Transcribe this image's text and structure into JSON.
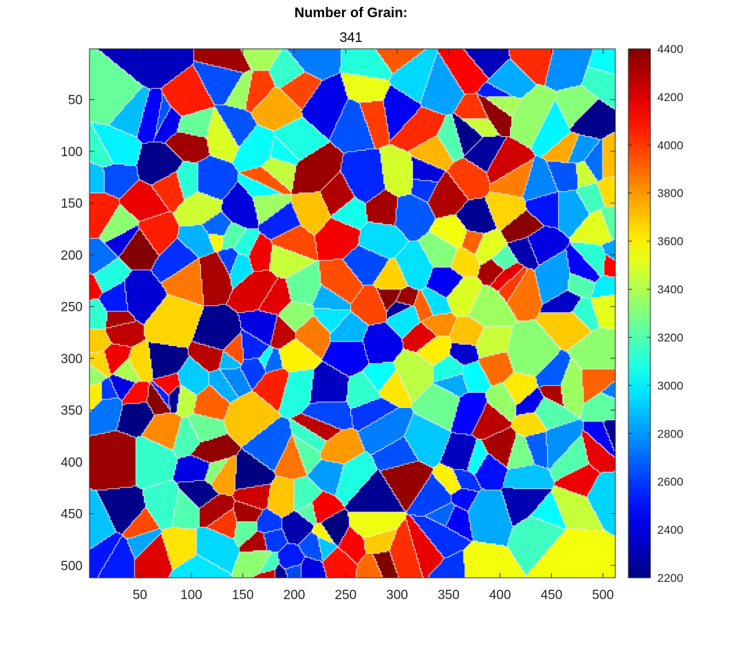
{
  "chart_data": {
    "type": "heatmap",
    "title": "Number of Grain:",
    "subtitle": "341",
    "xlim": [
      1,
      512
    ],
    "ylim": [
      1,
      512
    ],
    "y_direction": "reversed",
    "x_ticks": [
      50,
      100,
      150,
      200,
      250,
      300,
      350,
      400,
      450,
      500
    ],
    "y_ticks": [
      50,
      100,
      150,
      200,
      250,
      300,
      350,
      400,
      450,
      500
    ],
    "x_tick_labels": [
      "50",
      "100",
      "150",
      "200",
      "250",
      "300",
      "350",
      "400",
      "450",
      "500"
    ],
    "y_tick_labels": [
      "50",
      "100",
      "150",
      "200",
      "250",
      "300",
      "350",
      "400",
      "450",
      "500"
    ],
    "colormap": "jet",
    "colorbar": {
      "limits": [
        2200,
        4400
      ],
      "ticks": [
        2200,
        2400,
        2600,
        2800,
        3000,
        3200,
        3400,
        3600,
        3800,
        4000,
        4200,
        4400
      ],
      "tick_labels": [
        "2200",
        "2400",
        "2600",
        "2800",
        "3000",
        "3200",
        "3400",
        "3600",
        "3800",
        "4000",
        "4200",
        "4400"
      ],
      "location": "right"
    },
    "grain_count": 341,
    "value_range": [
      2200,
      4400
    ],
    "grid": false
  }
}
